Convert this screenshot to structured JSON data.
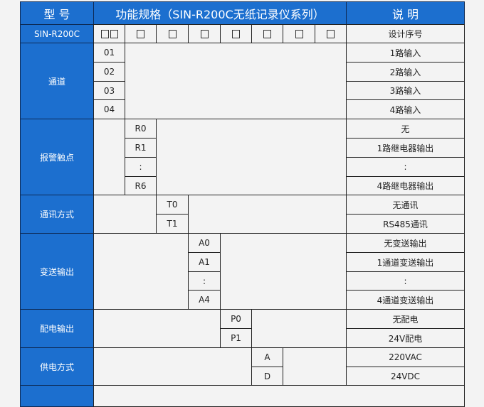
{
  "header": {
    "model": "型 号",
    "spec": "功能规格（SIN-R200C无纸记录仪系列）",
    "desc": "说 明"
  },
  "model_row": {
    "model": "SIN-R200C",
    "desc": "设计序号"
  },
  "sections": [
    {
      "label": "通道",
      "codes": [
        "01",
        "02",
        "03",
        "04"
      ],
      "descs": [
        "1路输入",
        "2路输入",
        "3路输入",
        "4路输入"
      ]
    },
    {
      "label": "报警触点",
      "codes": [
        "R0",
        "R1",
        ":",
        "R6"
      ],
      "descs": [
        "无",
        "1路继电器输出",
        ":",
        "4路继电器输出"
      ]
    },
    {
      "label": "通讯方式",
      "codes": [
        "T0",
        "T1"
      ],
      "descs": [
        "无通讯",
        "RS485通讯"
      ]
    },
    {
      "label": "变送输出",
      "codes": [
        "A0",
        "A1",
        ":",
        "A4"
      ],
      "descs": [
        "无变送输出",
        "1通道变送输出",
        ":",
        "4通道变送输出"
      ]
    },
    {
      "label": "配电输出",
      "codes": [
        "P0",
        "P1"
      ],
      "descs": [
        "无配电",
        "24V配电"
      ]
    },
    {
      "label": "供电方式",
      "codes": [
        "A",
        "D"
      ],
      "descs": [
        "220VAC",
        "24VDC"
      ]
    }
  ],
  "colors": {
    "header_blue": "#1c6fcf",
    "background": "#f3f3f3"
  }
}
